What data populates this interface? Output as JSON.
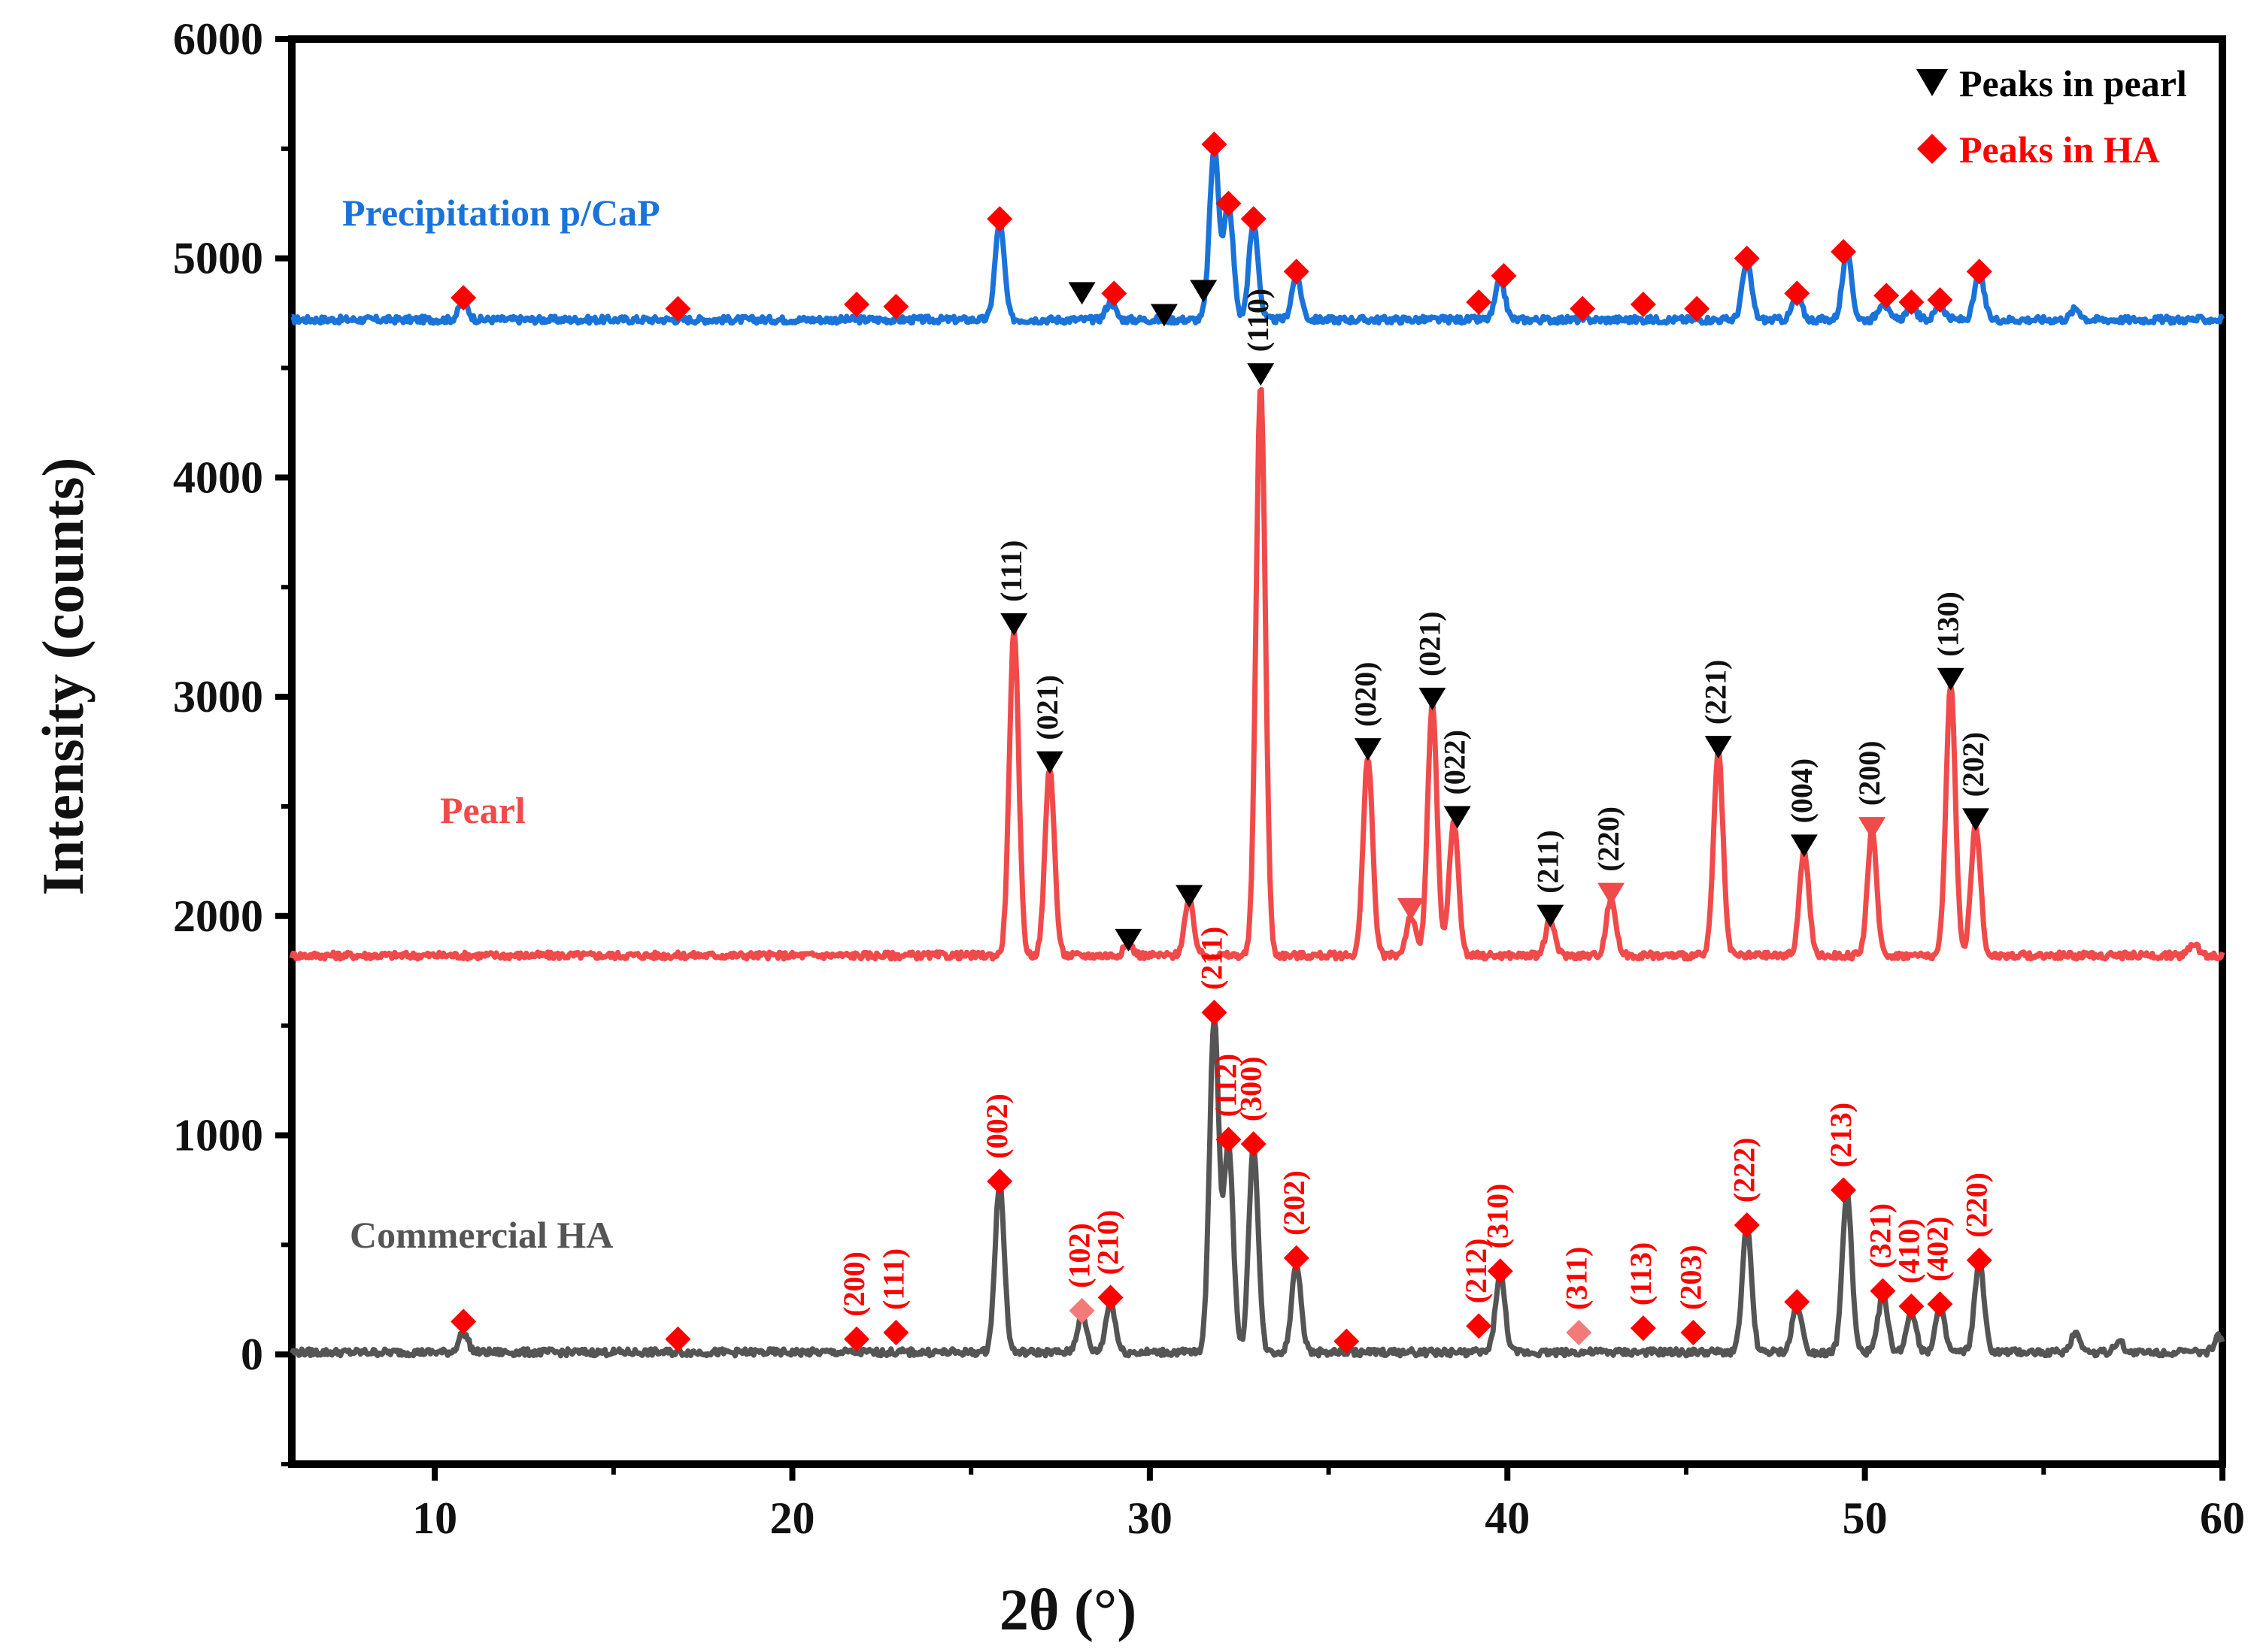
{
  "chart_data": {
    "type": "line",
    "title": "",
    "xlabel": "2θ (°)",
    "ylabel": "Intensity (counts)",
    "xlim": [
      6,
      60
    ],
    "ylim": [
      -500,
      6000
    ],
    "xticks": [
      10,
      20,
      30,
      40,
      50,
      60
    ],
    "yticks": [
      0,
      1000,
      2000,
      3000,
      4000,
      5000,
      6000
    ],
    "legend": [
      {
        "name": "Peaks in pearl",
        "marker": "triangle-down",
        "color": "#000000"
      },
      {
        "name": "Peaks in HA",
        "marker": "diamond",
        "color": "#ff0000"
      }
    ],
    "series": [
      {
        "name": "Precipitation p/CaP",
        "label": "Precipitation p/CaP",
        "color": "#1a73d9",
        "baseline": 4720,
        "peaks": [
          [
            10.8,
            4800
          ],
          [
            25.8,
            5160
          ],
          [
            28.9,
            4800
          ],
          [
            31.8,
            5500
          ],
          [
            32.2,
            5250
          ],
          [
            32.9,
            5160
          ],
          [
            34.1,
            4920
          ],
          [
            39.8,
            4900
          ],
          [
            46.7,
            4980
          ],
          [
            48.1,
            4830
          ],
          [
            49.5,
            5020
          ],
          [
            50.5,
            4800
          ],
          [
            51.3,
            4790
          ],
          [
            52.1,
            4790
          ],
          [
            53.2,
            4930
          ],
          [
            55.9,
            4770
          ]
        ],
        "markers": [
          {
            "x": 10.8,
            "y": 4820,
            "type": "HA"
          },
          {
            "x": 16.8,
            "y": 4770,
            "type": "HA"
          },
          {
            "x": 21.8,
            "y": 4790,
            "type": "HA"
          },
          {
            "x": 22.9,
            "y": 4780,
            "type": "HA"
          },
          {
            "x": 25.8,
            "y": 5180,
            "type": "HA"
          },
          {
            "x": 28.1,
            "y": 4840,
            "type": "pearl"
          },
          {
            "x": 29.0,
            "y": 4840,
            "type": "HA"
          },
          {
            "x": 30.4,
            "y": 4740,
            "type": "pearl"
          },
          {
            "x": 31.5,
            "y": 4850,
            "type": "pearl"
          },
          {
            "x": 31.8,
            "y": 5520,
            "type": "HA"
          },
          {
            "x": 32.2,
            "y": 5250,
            "type": "HA"
          },
          {
            "x": 32.9,
            "y": 5180,
            "type": "HA"
          },
          {
            "x": 34.1,
            "y": 4940,
            "type": "HA"
          },
          {
            "x": 39.2,
            "y": 4800,
            "type": "HA"
          },
          {
            "x": 39.9,
            "y": 4920,
            "type": "HA"
          },
          {
            "x": 42.1,
            "y": 4770,
            "type": "HA"
          },
          {
            "x": 43.8,
            "y": 4790,
            "type": "HA"
          },
          {
            "x": 45.3,
            "y": 4770,
            "type": "HA"
          },
          {
            "x": 46.7,
            "y": 5000,
            "type": "HA"
          },
          {
            "x": 48.1,
            "y": 4840,
            "type": "HA"
          },
          {
            "x": 49.4,
            "y": 5030,
            "type": "HA"
          },
          {
            "x": 50.6,
            "y": 4830,
            "type": "HA"
          },
          {
            "x": 51.3,
            "y": 4800,
            "type": "HA"
          },
          {
            "x": 52.1,
            "y": 4810,
            "type": "HA"
          },
          {
            "x": 53.2,
            "y": 4940,
            "type": "HA"
          }
        ]
      },
      {
        "name": "Pearl",
        "label": "Pearl",
        "color": "#f04a4a",
        "baseline": 1820,
        "peaks": [
          [
            26.2,
            3300
          ],
          [
            27.2,
            2680
          ],
          [
            29.4,
            1870
          ],
          [
            31.1,
            2070
          ],
          [
            33.1,
            4430
          ],
          [
            36.1,
            2730
          ],
          [
            37.3,
            2000
          ],
          [
            37.9,
            2970
          ],
          [
            38.5,
            2430
          ],
          [
            41.2,
            1980
          ],
          [
            42.9,
            2080
          ],
          [
            45.9,
            2750
          ],
          [
            48.3,
            2300
          ],
          [
            50.2,
            2380
          ],
          [
            52.4,
            3060
          ],
          [
            53.1,
            2420
          ],
          [
            59.2,
            1880
          ]
        ],
        "markers": [
          {
            "x": 26.2,
            "y": 3330,
            "type": "pearl",
            "hkl": "(111)"
          },
          {
            "x": 27.2,
            "y": 2700,
            "type": "pearl",
            "hkl": "(021)"
          },
          {
            "x": 29.4,
            "y": 1890,
            "type": "pearl"
          },
          {
            "x": 31.1,
            "y": 2090,
            "type": "pearl"
          },
          {
            "x": 33.1,
            "y": 4470,
            "type": "pearl",
            "hkl": "(110)"
          },
          {
            "x": 36.1,
            "y": 2760,
            "type": "pearl",
            "hkl": "(020)"
          },
          {
            "x": 37.3,
            "y": 2030,
            "type": "pearl-red"
          },
          {
            "x": 37.9,
            "y": 2990,
            "type": "pearl",
            "hkl": "(021)"
          },
          {
            "x": 38.6,
            "y": 2450,
            "type": "pearl",
            "hkl": "(022)"
          },
          {
            "x": 41.2,
            "y": 2000,
            "type": "pearl",
            "hkl": "(211)"
          },
          {
            "x": 42.9,
            "y": 2100,
            "type": "pearl-red",
            "hkl": "(220)"
          },
          {
            "x": 45.9,
            "y": 2770,
            "type": "pearl",
            "hkl": "(221)"
          },
          {
            "x": 48.3,
            "y": 2320,
            "type": "pearl",
            "hkl": "(004)"
          },
          {
            "x": 50.2,
            "y": 2400,
            "type": "pearl-red",
            "hkl": "(200)"
          },
          {
            "x": 52.4,
            "y": 3080,
            "type": "pearl",
            "hkl": "(130)"
          },
          {
            "x": 53.1,
            "y": 2440,
            "type": "pearl",
            "hkl": "(202)"
          }
        ]
      },
      {
        "name": "Commercial HA",
        "label": "Commercial HA",
        "color": "#555555",
        "baseline": 10,
        "peaks": [
          [
            10.8,
            100
          ],
          [
            25.8,
            780
          ],
          [
            28.1,
            180
          ],
          [
            28.9,
            240
          ],
          [
            31.8,
            1540
          ],
          [
            32.2,
            960
          ],
          [
            32.9,
            960
          ],
          [
            34.1,
            420
          ],
          [
            39.8,
            370
          ],
          [
            46.7,
            580
          ],
          [
            48.1,
            230
          ],
          [
            49.5,
            740
          ],
          [
            50.5,
            270
          ],
          [
            51.3,
            200
          ],
          [
            52.1,
            210
          ],
          [
            53.2,
            420
          ],
          [
            55.9,
            100
          ],
          [
            57.1,
            60
          ],
          [
            59.9,
            80
          ]
        ],
        "markers": [
          {
            "x": 10.8,
            "y": 150,
            "type": "HA"
          },
          {
            "x": 16.8,
            "y": 70,
            "type": "HA"
          },
          {
            "x": 21.8,
            "y": 70,
            "type": "HA",
            "hkl": "(200)"
          },
          {
            "x": 22.9,
            "y": 100,
            "type": "HA",
            "hkl": "(111)"
          },
          {
            "x": 25.8,
            "y": 790,
            "type": "HA",
            "hkl": "(002)"
          },
          {
            "x": 28.1,
            "y": 200,
            "type": "HA-light",
            "hkl": "(102)"
          },
          {
            "x": 28.9,
            "y": 260,
            "type": "HA",
            "hkl": "(210)"
          },
          {
            "x": 31.8,
            "y": 1560,
            "type": "HA",
            "hkl": "(211)"
          },
          {
            "x": 32.2,
            "y": 980,
            "type": "HA",
            "hkl": "(112)"
          },
          {
            "x": 32.9,
            "y": 960,
            "type": "HA",
            "hkl": "(300)"
          },
          {
            "x": 34.1,
            "y": 440,
            "type": "HA",
            "hkl": "(202)"
          },
          {
            "x": 35.5,
            "y": 60,
            "type": "HA"
          },
          {
            "x": 39.2,
            "y": 130,
            "type": "HA",
            "hkl": "(212)"
          },
          {
            "x": 39.8,
            "y": 380,
            "type": "HA",
            "hkl": "(310)"
          },
          {
            "x": 42.0,
            "y": 100,
            "type": "HA-light",
            "hkl": "(311)"
          },
          {
            "x": 43.8,
            "y": 120,
            "type": "HA",
            "hkl": "(113)"
          },
          {
            "x": 45.2,
            "y": 100,
            "type": "HA",
            "hkl": "(203)"
          },
          {
            "x": 46.7,
            "y": 590,
            "type": "HA",
            "hkl": "(222)"
          },
          {
            "x": 48.1,
            "y": 240,
            "type": "HA"
          },
          {
            "x": 49.4,
            "y": 750,
            "type": "HA",
            "hkl": "(213)"
          },
          {
            "x": 50.5,
            "y": 290,
            "type": "HA",
            "hkl": "(321)"
          },
          {
            "x": 51.3,
            "y": 220,
            "type": "HA",
            "hkl": "(410)"
          },
          {
            "x": 52.1,
            "y": 230,
            "type": "HA",
            "hkl": "(402)"
          },
          {
            "x": 53.2,
            "y": 430,
            "type": "HA",
            "hkl": "(220)"
          }
        ]
      }
    ]
  },
  "colors": {
    "axis": "#000000",
    "pearl_marker": "#000000",
    "ha_marker": "#ff0000",
    "ha_light_marker": "#f47a7a",
    "pearl_red_marker": "#f04a4a",
    "hkl_pearl": "#111111",
    "hkl_ha": "#ff0000"
  }
}
